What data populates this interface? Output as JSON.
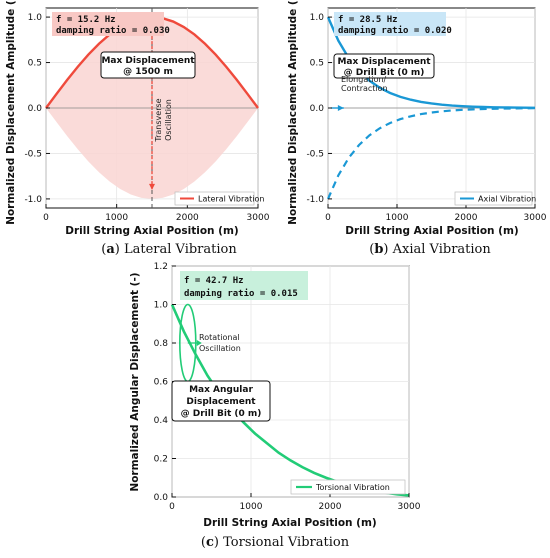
{
  "colors": {
    "lateral": "#ef4a3c",
    "lateral_fill": "#f9d5d2",
    "axial": "#1a98d5",
    "torsional": "#22cc77",
    "lateral_info_bg": "#f8c8c4",
    "axial_info_bg": "#c9e6f7",
    "torsional_info_bg": "#c8f0dc"
  },
  "chart_data": [
    {
      "id": "a",
      "type": "line",
      "caption_letter": "a",
      "caption_title": "Lateral Vibration",
      "xlabel": "Drill String Axial Position (m)",
      "ylabel": "Normalized Displacement Amplitude (-)",
      "xlim": [
        0,
        3000
      ],
      "ylim": [
        -1.1,
        1.1
      ],
      "xticks": [
        "0",
        "1000",
        "2000",
        "3000"
      ],
      "xtick_values": [
        0,
        1000,
        2000,
        3000
      ],
      "yticks": [
        "-1.0",
        "-0.5",
        "0.0",
        "0.5",
        "1.0"
      ],
      "ytick_values": [
        -1.0,
        -0.5,
        0.0,
        0.5,
        1.0
      ],
      "info_line1": "f = 15.2 Hz",
      "info_line2": "damping ratio = 0.030",
      "annotation_line1": "Max Displacement",
      "annotation_line2": "@ 1500 m",
      "side_label_line1": "Transverse",
      "side_label_line2": "Oscillation",
      "legend": "Lateral Vibration",
      "series": [
        {
          "name": "Lateral Vibration",
          "x": [
            0,
            150,
            300,
            450,
            600,
            750,
            900,
            1050,
            1200,
            1350,
            1500,
            1650,
            1800,
            1950,
            2100,
            2250,
            2400,
            2550,
            2700,
            2850,
            3000
          ],
          "y": [
            0.0,
            0.156,
            0.309,
            0.454,
            0.588,
            0.707,
            0.809,
            0.891,
            0.951,
            0.988,
            1.0,
            0.988,
            0.951,
            0.891,
            0.809,
            0.707,
            0.588,
            0.454,
            0.309,
            0.156,
            0.0
          ]
        }
      ],
      "envelope_lower_y": [
        0.0,
        -0.156,
        -0.309,
        -0.454,
        -0.588,
        -0.707,
        -0.809,
        -0.891,
        -0.951,
        -0.988,
        -1.0,
        -0.988,
        -0.951,
        -0.891,
        -0.809,
        -0.707,
        -0.588,
        -0.454,
        -0.309,
        -0.156,
        0.0
      ],
      "vline_x": 1500
    },
    {
      "id": "b",
      "type": "line",
      "caption_letter": "b",
      "caption_title": "Axial Vibration",
      "xlabel": "Drill String Axial Position (m)",
      "ylabel": "Normalized Displacement Amplitude (-)",
      "xlim": [
        0,
        3000
      ],
      "ylim": [
        -1.1,
        1.1
      ],
      "xticks": [
        "0",
        "1000",
        "2000",
        "3000"
      ],
      "xtick_values": [
        0,
        1000,
        2000,
        3000
      ],
      "yticks": [
        "-1.0",
        "-0.5",
        "0.0",
        "0.5",
        "1.0"
      ],
      "ytick_values": [
        -1.0,
        -0.5,
        0.0,
        0.5,
        1.0
      ],
      "info_line1": "f = 28.5 Hz",
      "info_line2": "damping ratio = 0.020",
      "annotation_line1": "Max Displacement",
      "annotation_line2": "@ Drill Bit (0 m)",
      "side_label_line1": "Elongation/",
      "side_label_line2": "Contraction",
      "legend": "Axial Vibration",
      "series": [
        {
          "name": "Axial Vibration",
          "x": [
            0,
            150,
            300,
            450,
            600,
            750,
            900,
            1050,
            1200,
            1350,
            1500,
            1650,
            1800,
            1950,
            2100,
            2250,
            2400,
            2550,
            2700,
            2850,
            3000
          ],
          "y": [
            1.0,
            0.741,
            0.549,
            0.407,
            0.301,
            0.223,
            0.165,
            0.122,
            0.091,
            0.067,
            0.05,
            0.037,
            0.027,
            0.02,
            0.015,
            0.011,
            0.008,
            0.006,
            0.005,
            0.003,
            0.002
          ]
        }
      ],
      "mirror_dashed": true
    },
    {
      "id": "c",
      "type": "line",
      "caption_letter": "c",
      "caption_title": "Torsional Vibration",
      "xlabel": "Drill String Axial Position (m)",
      "ylabel": "Normalized Angular Displacement (-)",
      "xlim": [
        0,
        3000
      ],
      "ylim": [
        0.0,
        1.2
      ],
      "xticks": [
        "0",
        "1000",
        "2000",
        "3000"
      ],
      "xtick_values": [
        0,
        1000,
        2000,
        3000
      ],
      "yticks": [
        "0.0",
        "0.2",
        "0.4",
        "0.6",
        "0.8",
        "1.0",
        "1.2"
      ],
      "ytick_values": [
        0.0,
        0.2,
        0.4,
        0.6,
        0.8,
        1.0,
        1.2
      ],
      "info_line1": "f = 42.7 Hz",
      "info_line2": "damping ratio = 0.015",
      "annotation_line1": "Max Angular",
      "annotation_line2": "Displacement",
      "annotation_line3": "@ Drill Bit (0 m)",
      "side_label_line1": "Rotational",
      "side_label_line2": "Oscillation",
      "legend": "Torsional Vibration",
      "series": [
        {
          "name": "Torsional Vibration",
          "x": [
            0,
            150,
            300,
            450,
            600,
            750,
            900,
            1050,
            1200,
            1350,
            1500,
            1650,
            1800,
            1950,
            2100,
            2250,
            2400,
            2550,
            2700,
            2850,
            3000
          ],
          "y": [
            1.0,
            0.86,
            0.74,
            0.63,
            0.54,
            0.46,
            0.39,
            0.33,
            0.28,
            0.23,
            0.19,
            0.155,
            0.125,
            0.1,
            0.078,
            0.06,
            0.045,
            0.032,
            0.022,
            0.014,
            0.008
          ]
        }
      ]
    }
  ]
}
